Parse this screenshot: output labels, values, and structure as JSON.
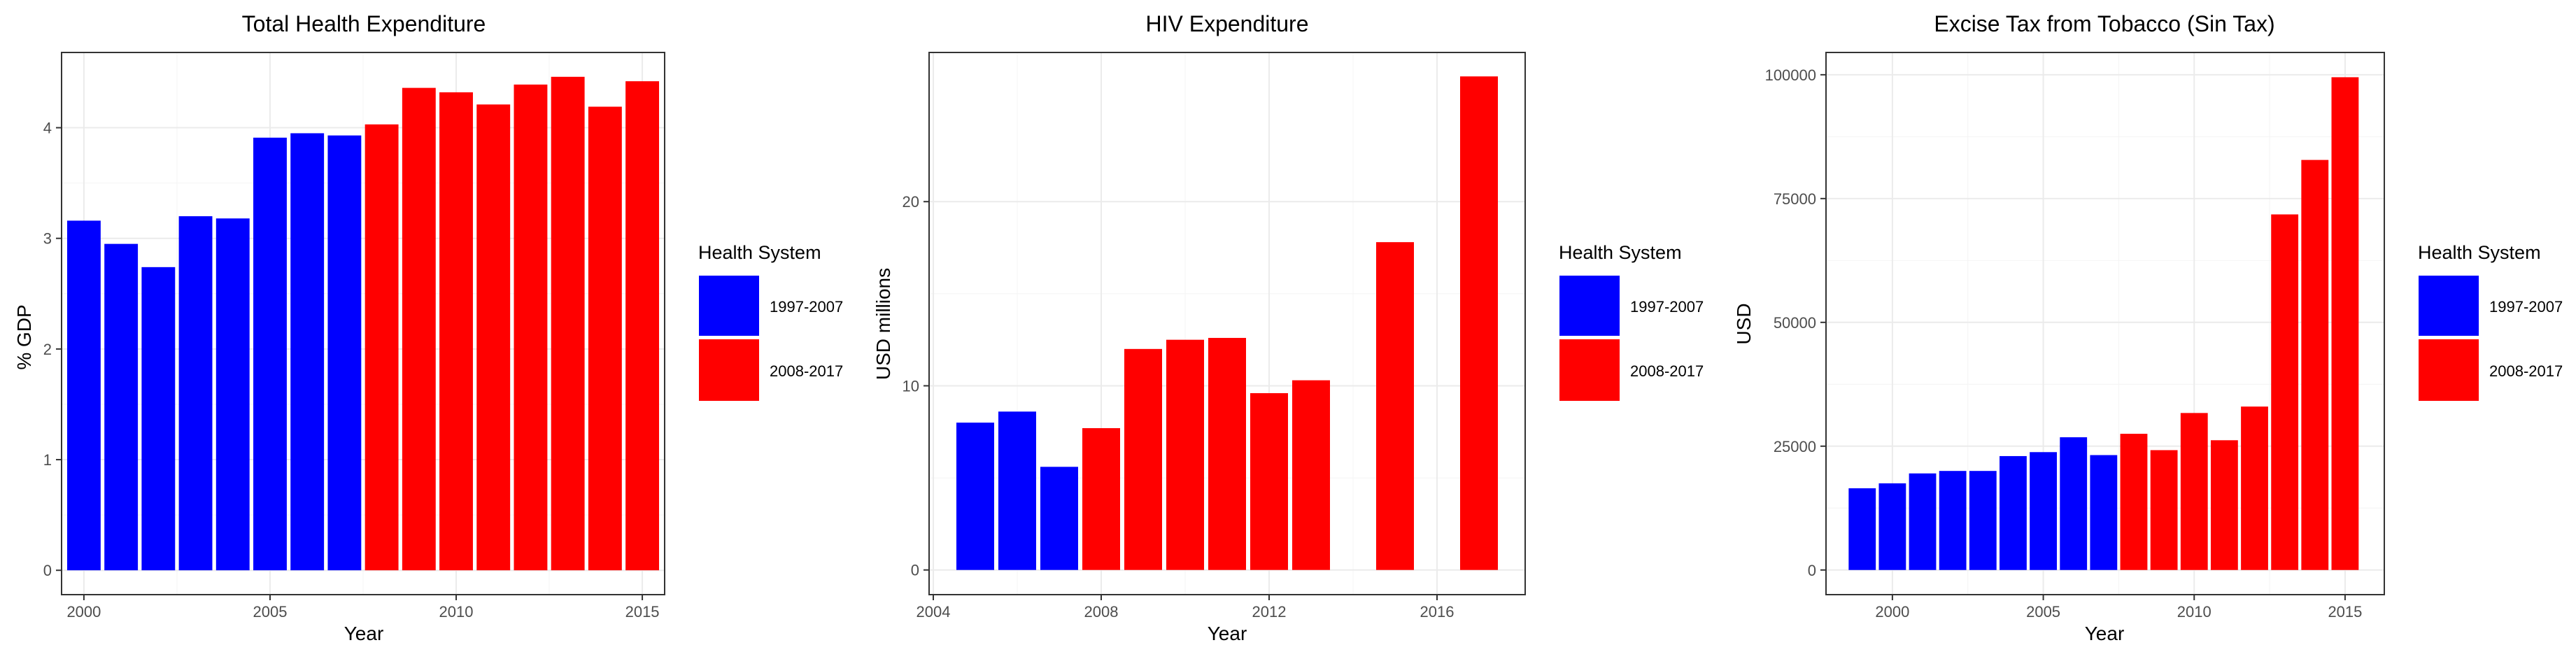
{
  "colors": {
    "period1": "#0000FF",
    "period2": "#FF0000"
  },
  "chart_data": [
    {
      "type": "bar",
      "title": "Total Health Expenditure",
      "xlabel": "Year",
      "ylabel": "% GDP",
      "x": [
        2000,
        2001,
        2002,
        2003,
        2004,
        2005,
        2006,
        2007,
        2008,
        2009,
        2010,
        2011,
        2012,
        2013,
        2014,
        2015
      ],
      "values": [
        3.16,
        2.95,
        2.74,
        3.2,
        3.18,
        3.91,
        3.95,
        3.93,
        4.03,
        4.36,
        4.32,
        4.21,
        4.39,
        4.46,
        4.19,
        4.42
      ],
      "group": [
        "1997-2007",
        "1997-2007",
        "1997-2007",
        "1997-2007",
        "1997-2007",
        "1997-2007",
        "1997-2007",
        "1997-2007",
        "2008-2017",
        "2008-2017",
        "2008-2017",
        "2008-2017",
        "2008-2017",
        "2008-2017",
        "2008-2017",
        "2008-2017"
      ],
      "xlim": [
        1999.4,
        2015.6
      ],
      "ylim": [
        -0.22,
        4.68
      ],
      "xticks": [
        2000,
        2005,
        2010,
        2015
      ],
      "xtick_labels": [
        "2000",
        "2005",
        "2010",
        "2015"
      ],
      "yticks": [
        0,
        1,
        2,
        3,
        4
      ],
      "ytick_labels": [
        "0",
        "1",
        "2",
        "3",
        "4"
      ],
      "legend_title": "Health System",
      "legend": [
        "1997-2007",
        "2008-2017"
      ]
    },
    {
      "type": "bar",
      "title": "HIV Expenditure",
      "xlabel": "Year",
      "ylabel": "USD millions",
      "x": [
        2005,
        2006,
        2007,
        2008,
        2009,
        2010,
        2011,
        2012,
        2013,
        2015,
        2017
      ],
      "values": [
        8.0,
        8.6,
        5.6,
        7.7,
        12.0,
        12.5,
        12.6,
        9.6,
        10.3,
        17.8,
        26.8
      ],
      "group": [
        "1997-2007",
        "1997-2007",
        "1997-2007",
        "2008-2017",
        "2008-2017",
        "2008-2017",
        "2008-2017",
        "2008-2017",
        "2008-2017",
        "2008-2017",
        "2008-2017"
      ],
      "xlim": [
        2003.9,
        2018.1
      ],
      "ylim": [
        -1.34,
        28.1
      ],
      "xticks": [
        2004,
        2008,
        2012,
        2016
      ],
      "xtick_labels": [
        "2004",
        "2008",
        "2012",
        "2016"
      ],
      "yticks": [
        0,
        10,
        20
      ],
      "ytick_labels": [
        "0",
        "10",
        "20"
      ],
      "legend_title": "Health System",
      "legend": [
        "1997-2007",
        "2008-2017"
      ]
    },
    {
      "type": "bar",
      "title": "Excise Tax from Tobacco (Sin Tax)",
      "xlabel": "Year",
      "ylabel": "USD",
      "x": [
        1999,
        2000,
        2001,
        2002,
        2003,
        2004,
        2005,
        2006,
        2007,
        2008,
        2009,
        2010,
        2011,
        2012,
        2013,
        2014,
        2015
      ],
      "values": [
        16500,
        17500,
        19500,
        20000,
        20000,
        23000,
        23800,
        26800,
        23200,
        27500,
        24200,
        31700,
        26200,
        33000,
        71800,
        82800,
        99500
      ],
      "group": [
        "1997-2007",
        "1997-2007",
        "1997-2007",
        "1997-2007",
        "1997-2007",
        "1997-2007",
        "1997-2007",
        "1997-2007",
        "1997-2007",
        "2008-2017",
        "2008-2017",
        "2008-2017",
        "2008-2017",
        "2008-2017",
        "2008-2017",
        "2008-2017",
        "2008-2017"
      ],
      "xlim": [
        1997.8,
        2016.3
      ],
      "ylim": [
        -4977,
        104500
      ],
      "xticks": [
        2000,
        2005,
        2010,
        2015
      ],
      "xtick_labels": [
        "2000",
        "2005",
        "2010",
        "2015"
      ],
      "yticks": [
        0,
        25000,
        50000,
        75000,
        100000
      ],
      "ytick_labels": [
        "0",
        "25000",
        "50000",
        "75000",
        "100000"
      ],
      "legend_title": "Health System",
      "legend": [
        "1997-2007",
        "2008-2017"
      ]
    }
  ]
}
